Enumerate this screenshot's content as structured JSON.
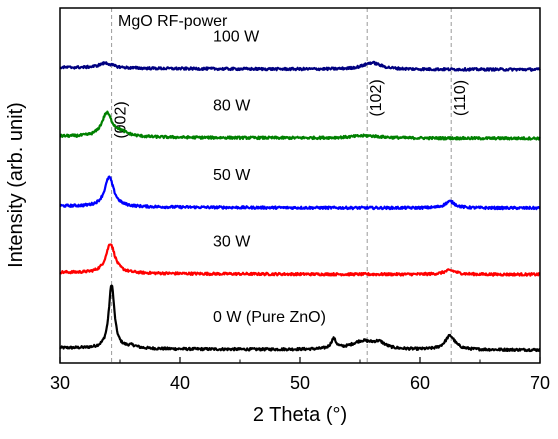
{
  "chart_data": {
    "type": "line",
    "title": "MgO RF-power",
    "xlabel": "2 Theta (°)",
    "ylabel": "Intensity (arb. unit)",
    "xlim": [
      30,
      70
    ],
    "xticks": [
      "30",
      "40",
      "50",
      "60",
      "70"
    ],
    "yticks_shown": false,
    "grid": false,
    "peak_lines": [
      {
        "label": "(002)",
        "x": 34.3
      },
      {
        "label": "(102)",
        "x": 55.6
      },
      {
        "label": "(110)",
        "x": 62.6
      }
    ],
    "series": [
      {
        "name": "0 W (Pure ZnO)",
        "color": "#000000",
        "baseline": 0.0,
        "peaks": [
          {
            "x": 34.3,
            "h": 0.78,
            "w": 0.28
          },
          {
            "x": 36.0,
            "h": 0.03,
            "w": 0.5
          },
          {
            "x": 52.8,
            "h": 0.12,
            "w": 0.25
          },
          {
            "x": 55.2,
            "h": 0.1,
            "w": 1.1
          },
          {
            "x": 56.6,
            "h": 0.07,
            "w": 0.6
          },
          {
            "x": 62.5,
            "h": 0.17,
            "w": 0.5
          }
        ]
      },
      {
        "name": "30 W",
        "color": "#ff0000",
        "baseline": 0.92,
        "peaks": [
          {
            "x": 34.2,
            "h": 0.36,
            "w": 0.45
          },
          {
            "x": 62.5,
            "h": 0.05,
            "w": 0.6
          }
        ]
      },
      {
        "name": "50 W",
        "color": "#0000ff",
        "baseline": 1.73,
        "peaks": [
          {
            "x": 34.1,
            "h": 0.36,
            "w": 0.45
          },
          {
            "x": 62.5,
            "h": 0.08,
            "w": 0.5
          }
        ]
      },
      {
        "name": "80 W",
        "color": "#008000",
        "baseline": 2.58,
        "peaks": [
          {
            "x": 33.9,
            "h": 0.28,
            "w": 0.5
          },
          {
            "x": 35.0,
            "h": 0.05,
            "w": 0.8
          },
          {
            "x": 55.5,
            "h": 0.03,
            "w": 1.5
          }
        ]
      },
      {
        "name": "100 W",
        "color": "#000080",
        "baseline": 3.42,
        "peaks": [
          {
            "x": 33.8,
            "h": 0.06,
            "w": 0.7
          },
          {
            "x": 56.0,
            "h": 0.08,
            "w": 0.9
          }
        ]
      }
    ]
  }
}
